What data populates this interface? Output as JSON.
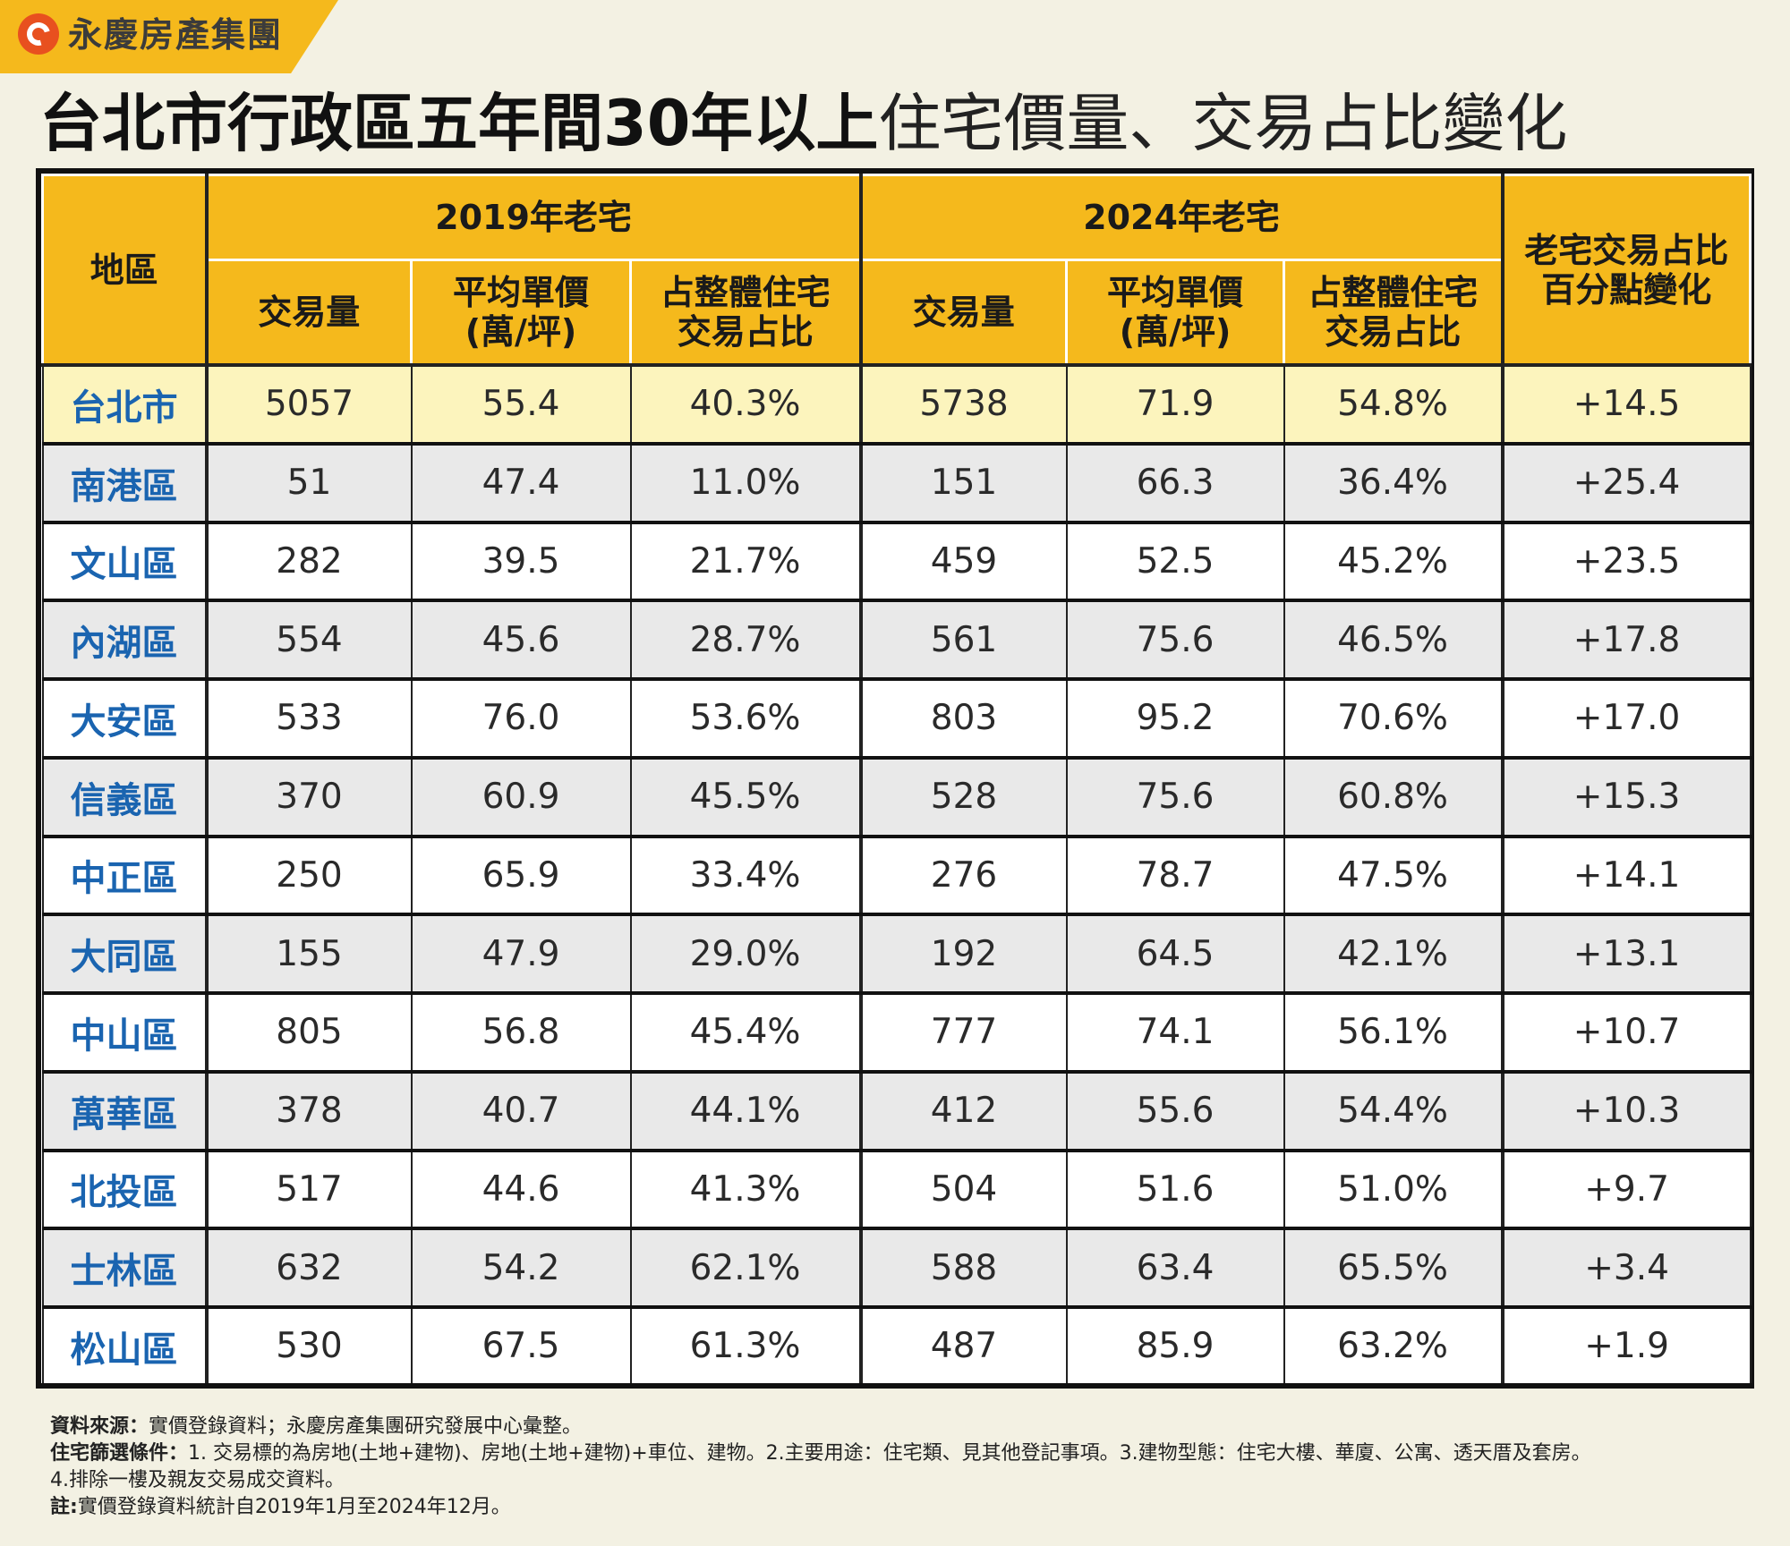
{
  "brand": {
    "name": "永慶房產集團"
  },
  "title": {
    "bold": "台北市行政區五年間30年以上",
    "light": "住宅價量、交易占比變化"
  },
  "colors": {
    "header_bg": "#f5b91c",
    "region_text": "#1a64b0",
    "total_row_bg": "#fcf4bd",
    "alt_row_bg": "#e9e9e9",
    "page_bg": "#f3f1e3"
  },
  "chart_data": {
    "type": "table",
    "headers": {
      "region": "地區",
      "group2019": "2019年老宅",
      "group2024": "2024年老宅",
      "volume": "交易量",
      "price": "平均單價\n(萬/坪)",
      "share": "占整體住宅\n交易占比",
      "change": "老宅交易占比\n百分點變化"
    },
    "rows": [
      {
        "region": "台北市",
        "vol2019": "5057",
        "price2019": "55.4",
        "share2019": "40.3%",
        "vol2024": "5738",
        "price2024": "71.9",
        "share2024": "54.8%",
        "change": "+14.5"
      },
      {
        "region": "南港區",
        "vol2019": "51",
        "price2019": "47.4",
        "share2019": "11.0%",
        "vol2024": "151",
        "price2024": "66.3",
        "share2024": "36.4%",
        "change": "+25.4"
      },
      {
        "region": "文山區",
        "vol2019": "282",
        "price2019": "39.5",
        "share2019": "21.7%",
        "vol2024": "459",
        "price2024": "52.5",
        "share2024": "45.2%",
        "change": "+23.5"
      },
      {
        "region": "內湖區",
        "vol2019": "554",
        "price2019": "45.6",
        "share2019": "28.7%",
        "vol2024": "561",
        "price2024": "75.6",
        "share2024": "46.5%",
        "change": "+17.8"
      },
      {
        "region": "大安區",
        "vol2019": "533",
        "price2019": "76.0",
        "share2019": "53.6%",
        "vol2024": "803",
        "price2024": "95.2",
        "share2024": "70.6%",
        "change": "+17.0"
      },
      {
        "region": "信義區",
        "vol2019": "370",
        "price2019": "60.9",
        "share2019": "45.5%",
        "vol2024": "528",
        "price2024": "75.6",
        "share2024": "60.8%",
        "change": "+15.3"
      },
      {
        "region": "中正區",
        "vol2019": "250",
        "price2019": "65.9",
        "share2019": "33.4%",
        "vol2024": "276",
        "price2024": "78.7",
        "share2024": "47.5%",
        "change": "+14.1"
      },
      {
        "region": "大同區",
        "vol2019": "155",
        "price2019": "47.9",
        "share2019": "29.0%",
        "vol2024": "192",
        "price2024": "64.5",
        "share2024": "42.1%",
        "change": "+13.1"
      },
      {
        "region": "中山區",
        "vol2019": "805",
        "price2019": "56.8",
        "share2019": "45.4%",
        "vol2024": "777",
        "price2024": "74.1",
        "share2024": "56.1%",
        "change": "+10.7"
      },
      {
        "region": "萬華區",
        "vol2019": "378",
        "price2019": "40.7",
        "share2019": "44.1%",
        "vol2024": "412",
        "price2024": "55.6",
        "share2024": "54.4%",
        "change": "+10.3"
      },
      {
        "region": "北投區",
        "vol2019": "517",
        "price2019": "44.6",
        "share2019": "41.3%",
        "vol2024": "504",
        "price2024": "51.6",
        "share2024": "51.0%",
        "change": "+9.7"
      },
      {
        "region": "士林區",
        "vol2019": "632",
        "price2019": "54.2",
        "share2019": "62.1%",
        "vol2024": "588",
        "price2024": "63.4",
        "share2024": "65.5%",
        "change": "+3.4"
      },
      {
        "region": "松山區",
        "vol2019": "530",
        "price2019": "67.5",
        "share2019": "61.3%",
        "vol2024": "487",
        "price2024": "85.9",
        "share2024": "63.2%",
        "change": "+1.9"
      }
    ]
  },
  "notes": {
    "source_label": "資料來源：",
    "source_text": "實價登錄資料；永慶房產集團研究發展中心彙整。",
    "filter_label": "住宅篩選條件：",
    "filter_text": "1. 交易標的為房地(土地+建物)、房地(土地+建物)+車位、建物。2.主要用途：住宅類、見其他登記事項。3.建物型態：住宅大樓、華廈、公寓、透天厝及套房。",
    "filter_text2": "4.排除一樓及親友交易成交資料。",
    "note_label": "註:",
    "note_text": "實價登錄資料統計自2019年1月至2024年12月。"
  }
}
